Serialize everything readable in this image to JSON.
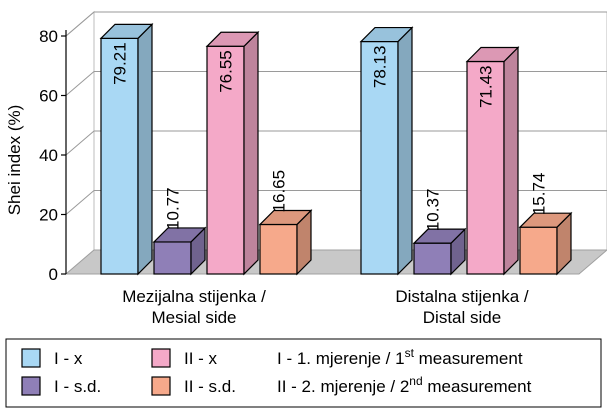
{
  "chart_data": {
    "type": "bar",
    "ylabel": "Shei index (%)",
    "ylim": [
      0,
      80
    ],
    "yticks": [
      0,
      20,
      40,
      60,
      80
    ],
    "grid": true,
    "categories": [
      {
        "line1": "Mezijalna stijenka /",
        "line2": "Mesial side"
      },
      {
        "line1": "Distalna stijenka /",
        "line2": "Distal side"
      }
    ],
    "series": [
      {
        "name": "I - x",
        "values": [
          79.21,
          78.13
        ],
        "value_labels": [
          "79.21",
          "78.13"
        ],
        "color": "#a9d8f4",
        "label_inside": true
      },
      {
        "name": "I - s.d.",
        "values": [
          10.77,
          10.37
        ],
        "value_labels": [
          "10.77",
          "10.37"
        ],
        "color": "#8f7fb7",
        "label_inside": false
      },
      {
        "name": "II - x",
        "values": [
          76.55,
          71.43
        ],
        "value_labels": [
          "76.55",
          "71.43"
        ],
        "color": "#f4a9c8",
        "label_inside": true
      },
      {
        "name": "II - s.d.",
        "values": [
          16.65,
          15.74
        ],
        "value_labels": [
          "16.65",
          "15.74"
        ],
        "color": "#f6a98b",
        "label_inside": false
      }
    ],
    "legend": {
      "placement": "bottom",
      "notes": [
        {
          "prefix": "I - 1. mjerenje / 1",
          "sup": "st",
          "suffix": " measurement"
        },
        {
          "prefix": "II - 2. mjerenje / 2",
          "sup": "nd",
          "suffix": " measurement"
        }
      ]
    }
  }
}
